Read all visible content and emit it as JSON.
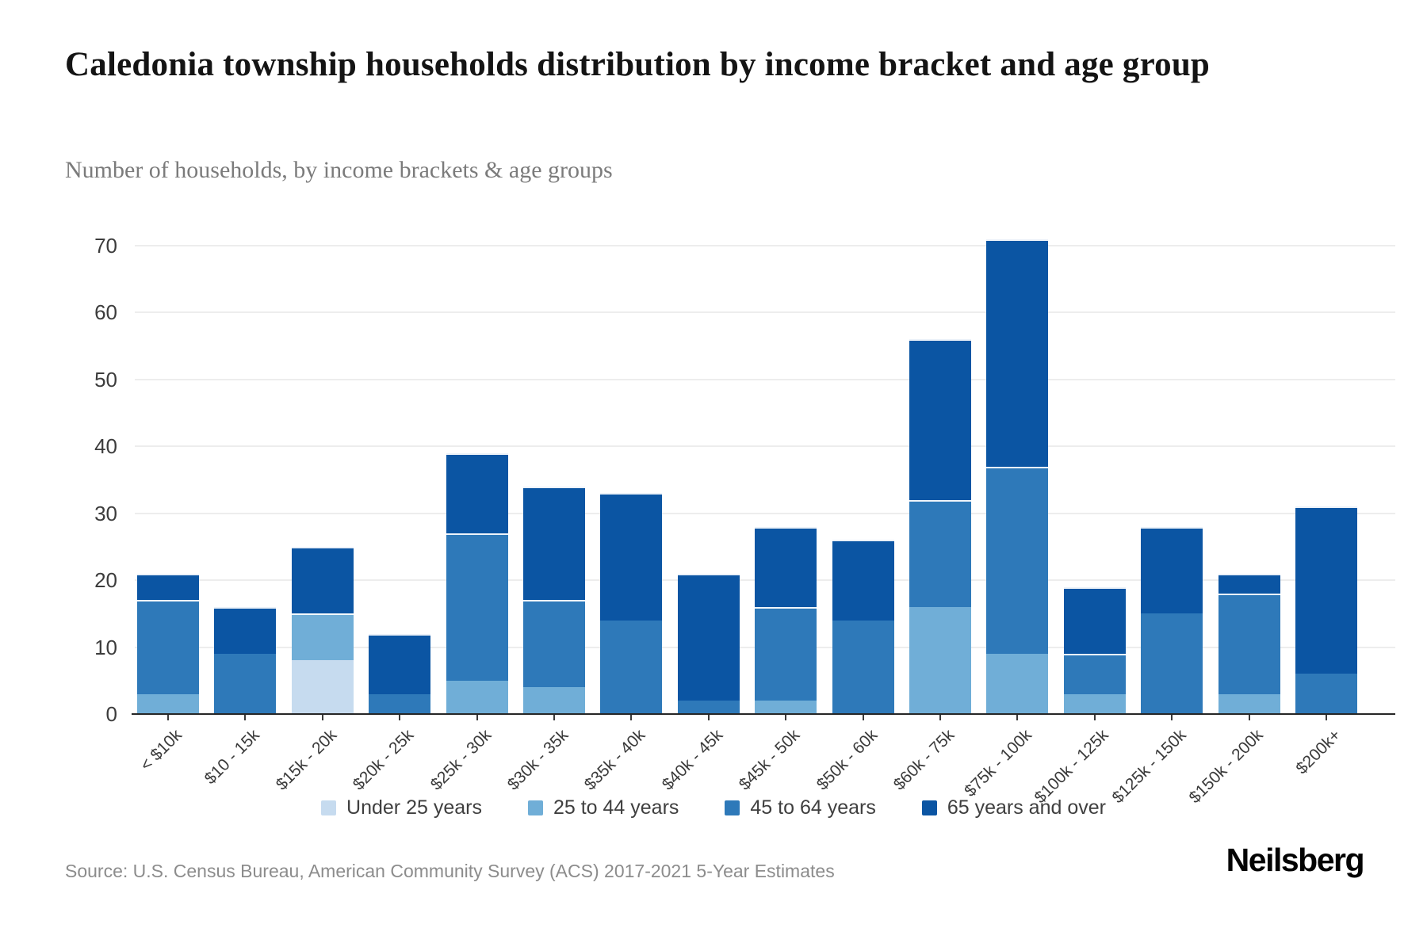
{
  "header": {
    "title": "Caledonia township households distribution by income bracket and age group",
    "subtitle": "Number of households, by income brackets & age groups"
  },
  "footer": {
    "source": "Source: U.S. Census Bureau, American Community Survey (ACS) 2017-2021 5-Year Estimates",
    "brand": "Neilsberg"
  },
  "chart_data": {
    "type": "bar",
    "stacked": true,
    "title": "Caledonia township households distribution by income bracket and age group",
    "subtitle": "Number of households, by income brackets & age groups",
    "xlabel": "",
    "ylabel": "",
    "ylim": [
      0,
      75
    ],
    "yticks": [
      0,
      10,
      20,
      30,
      40,
      50,
      60,
      70
    ],
    "grid": true,
    "legend_position": "bottom",
    "categories": [
      "< $10k",
      "$10 - 15k",
      "$15k - 20k",
      "$20k - 25k",
      "$25k - 30k",
      "$30k - 35k",
      "$35k - 40k",
      "$40k - 45k",
      "$45k - 50k",
      "$50k - 60k",
      "$60k - 75k",
      "$75k - 100k",
      "$100k - 125k",
      "$125k - 150k",
      "$150k - 200k",
      "$200k+"
    ],
    "series": [
      {
        "name": "Under 25 years",
        "color": "#c6dbef",
        "values": [
          0,
          0,
          8,
          0,
          0,
          0,
          0,
          0,
          0,
          0,
          0,
          0,
          0,
          0,
          0,
          0
        ]
      },
      {
        "name": "25 to 44 years",
        "color": "#70aed7",
        "values": [
          3,
          0,
          7,
          0,
          5,
          4,
          0,
          0,
          2,
          0,
          16,
          9,
          3,
          0,
          3,
          0
        ]
      },
      {
        "name": "45 to 64 years",
        "color": "#2e79b9",
        "values": [
          14,
          9,
          0,
          3,
          22,
          13,
          14,
          2,
          14,
          14,
          16,
          28,
          6,
          15,
          15,
          6
        ]
      },
      {
        "name": "65 years and over",
        "color": "#0b55a3",
        "values": [
          4,
          7,
          10,
          9,
          12,
          17,
          19,
          19,
          12,
          12,
          24,
          34,
          10,
          13,
          3,
          25
        ]
      }
    ],
    "totals": [
      21,
      16,
      25,
      12,
      39,
      34,
      33,
      21,
      28,
      26,
      56,
      71,
      19,
      28,
      21,
      31
    ]
  }
}
